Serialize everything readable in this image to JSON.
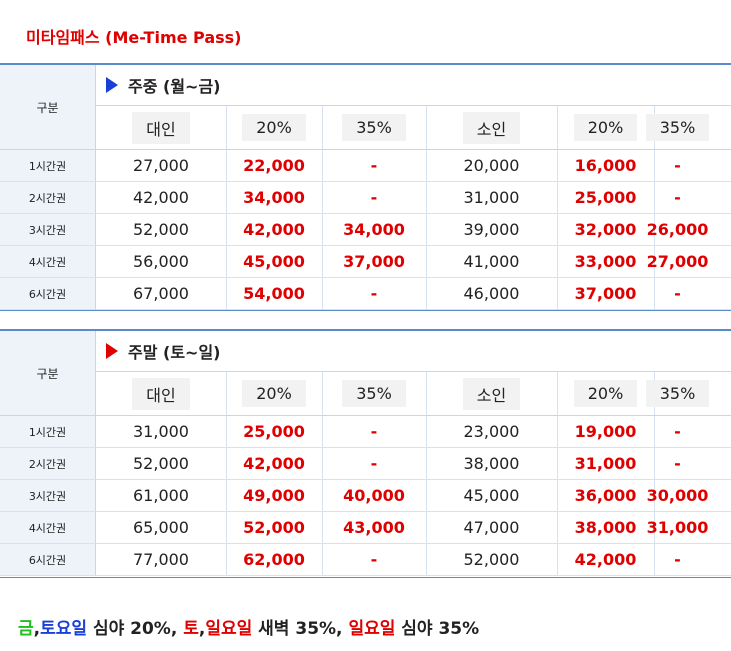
{
  "title": "미타임패스 (Me-Time Pass)",
  "gubun_label": "구분",
  "columns": [
    "대인",
    "20%",
    "35%",
    "소인",
    "20%",
    "35%"
  ],
  "colors": {
    "discount": "#e00000",
    "weekday_marker": "#1a3fd6",
    "weekend_marker": "#e00000",
    "border": "#5a8bc9"
  },
  "weekday": {
    "period_label": "주중 (월~금)",
    "rows": [
      {
        "label": "1시간권",
        "cells": [
          "27,000",
          "22,000",
          "-",
          "20,000",
          "16,000",
          "-"
        ]
      },
      {
        "label": "2시간권",
        "cells": [
          "42,000",
          "34,000",
          "-",
          "31,000",
          "25,000",
          "-"
        ]
      },
      {
        "label": "3시간권",
        "cells": [
          "52,000",
          "42,000",
          "34,000",
          "39,000",
          "32,000",
          "26,000"
        ]
      },
      {
        "label": "4시간권",
        "cells": [
          "56,000",
          "45,000",
          "37,000",
          "41,000",
          "33,000",
          "27,000"
        ]
      },
      {
        "label": "6시간권",
        "cells": [
          "67,000",
          "54,000",
          "-",
          "46,000",
          "37,000",
          "-"
        ]
      }
    ]
  },
  "weekend": {
    "period_label": "주말 (토~일)",
    "rows": [
      {
        "label": "1시간권",
        "cells": [
          "31,000",
          "25,000",
          "-",
          "23,000",
          "19,000",
          "-"
        ]
      },
      {
        "label": "2시간권",
        "cells": [
          "52,000",
          "42,000",
          "-",
          "38,000",
          "31,000",
          "-"
        ]
      },
      {
        "label": "3시간권",
        "cells": [
          "61,000",
          "49,000",
          "40,000",
          "45,000",
          "36,000",
          "30,000"
        ]
      },
      {
        "label": "4시간권",
        "cells": [
          "65,000",
          "52,000",
          "43,000",
          "47,000",
          "38,000",
          "31,000"
        ]
      },
      {
        "label": "6시간권",
        "cells": [
          "77,000",
          "62,000",
          "-",
          "52,000",
          "42,000",
          "-"
        ]
      }
    ]
  },
  "footer": {
    "p1": "금",
    "p2": ",",
    "p3": "토요일",
    "p4": " 심야 20%, ",
    "p5": "토",
    "p6": ",",
    "p7": "일요일",
    "p8": " 새벽 35%, ",
    "p9": "일요일",
    "p10": " 심야 35%"
  }
}
